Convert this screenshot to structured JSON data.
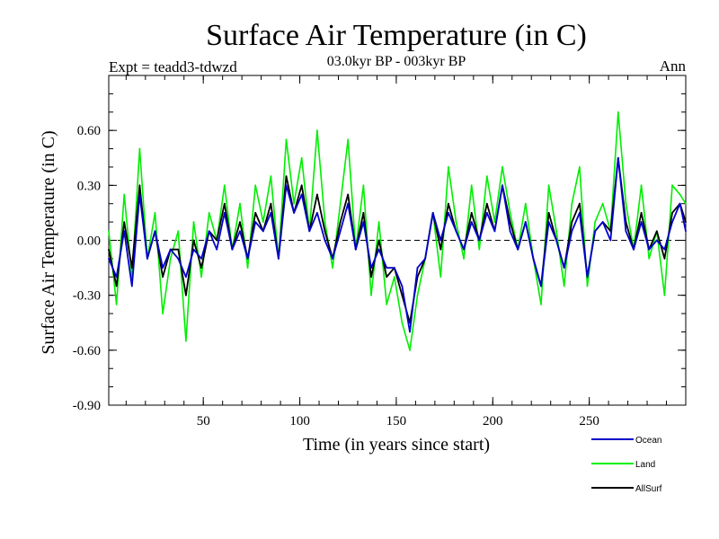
{
  "chart_data": {
    "type": "line",
    "title": "Surface Air Temperature (in C)",
    "subtitle": "03.0kyr BP - 003kyr BP",
    "expt_label": "Expt = teadd3-tdwzd",
    "season_label": "Ann",
    "xlabel": "Time (in years since start)",
    "ylabel": "Surface Air Temperature (in C)",
    "xlim": [
      1,
      300
    ],
    "ylim": [
      -0.9,
      0.9
    ],
    "x_ticks": [
      50,
      100,
      150,
      200,
      250
    ],
    "x_tick_labels": [
      "50",
      "100",
      "150",
      "200",
      "250"
    ],
    "y_ticks": [
      -0.9,
      -0.6,
      -0.3,
      0.0,
      0.3,
      0.6
    ],
    "y_tick_labels": [
      "-0.90",
      "-0.60",
      "-0.30",
      "0.00",
      "0.30",
      "0.60"
    ],
    "reference_line": 0.0,
    "series": [
      {
        "name": "Land",
        "color": "#00ee00",
        "x": [
          1,
          5,
          9,
          13,
          17,
          21,
          25,
          29,
          33,
          37,
          41,
          45,
          49,
          53,
          57,
          61,
          65,
          69,
          73,
          77,
          81,
          85,
          89,
          93,
          97,
          101,
          105,
          109,
          113,
          117,
          121,
          125,
          129,
          133,
          137,
          141,
          145,
          149,
          153,
          157,
          161,
          165,
          169,
          173,
          177,
          181,
          185,
          189,
          193,
          197,
          201,
          205,
          209,
          213,
          217,
          221,
          225,
          229,
          233,
          237,
          241,
          245,
          249,
          253,
          257,
          261,
          265,
          269,
          273,
          277,
          281,
          285,
          289,
          293,
          297,
          300
        ],
        "values": [
          0.05,
          -0.35,
          0.25,
          -0.2,
          0.5,
          -0.1,
          0.15,
          -0.4,
          -0.1,
          0.05,
          -0.55,
          0.1,
          -0.2,
          0.15,
          0.0,
          0.3,
          -0.05,
          0.2,
          -0.15,
          0.3,
          0.1,
          0.35,
          -0.1,
          0.55,
          0.2,
          0.45,
          0.05,
          0.6,
          0.1,
          -0.15,
          0.2,
          0.55,
          -0.05,
          0.3,
          -0.3,
          0.1,
          -0.35,
          -0.2,
          -0.45,
          -0.6,
          -0.3,
          -0.1,
          0.15,
          -0.2,
          0.4,
          0.1,
          -0.1,
          0.3,
          -0.05,
          0.35,
          0.1,
          0.4,
          0.15,
          -0.05,
          0.2,
          -0.1,
          -0.35,
          0.3,
          0.05,
          -0.25,
          0.2,
          0.4,
          -0.25,
          0.1,
          0.2,
          0.05,
          0.7,
          0.2,
          -0.05,
          0.3,
          -0.1,
          0.05,
          -0.3,
          0.3,
          0.25,
          0.2
        ]
      },
      {
        "name": "AllSurf",
        "color": "#000000",
        "x": [
          1,
          5,
          9,
          13,
          17,
          21,
          25,
          29,
          33,
          37,
          41,
          45,
          49,
          53,
          57,
          61,
          65,
          69,
          73,
          77,
          81,
          85,
          89,
          93,
          97,
          101,
          105,
          109,
          113,
          117,
          121,
          125,
          129,
          133,
          137,
          141,
          145,
          149,
          153,
          157,
          161,
          165,
          169,
          173,
          177,
          181,
          185,
          189,
          193,
          197,
          201,
          205,
          209,
          213,
          217,
          221,
          225,
          229,
          233,
          237,
          241,
          245,
          249,
          253,
          257,
          261,
          265,
          269,
          273,
          277,
          281,
          285,
          289,
          293,
          297,
          300
        ],
        "values": [
          -0.05,
          -0.25,
          0.1,
          -0.15,
          0.3,
          -0.1,
          0.05,
          -0.2,
          -0.05,
          -0.05,
          -0.3,
          0.0,
          -0.15,
          0.05,
          0.0,
          0.2,
          -0.05,
          0.1,
          -0.1,
          0.15,
          0.05,
          0.2,
          -0.1,
          0.35,
          0.15,
          0.3,
          0.05,
          0.25,
          0.05,
          -0.1,
          0.1,
          0.25,
          -0.05,
          0.15,
          -0.2,
          0.0,
          -0.2,
          -0.15,
          -0.3,
          -0.45,
          -0.2,
          -0.1,
          0.15,
          -0.05,
          0.2,
          0.05,
          -0.05,
          0.15,
          0.0,
          0.2,
          0.05,
          0.3,
          0.1,
          -0.05,
          0.1,
          -0.1,
          -0.25,
          0.15,
          0.0,
          -0.15,
          0.1,
          0.2,
          -0.2,
          0.05,
          0.1,
          0.05,
          0.45,
          0.1,
          -0.05,
          0.15,
          -0.05,
          0.05,
          -0.1,
          0.15,
          0.2,
          0.1
        ]
      },
      {
        "name": "Ocean",
        "color": "#0000cc",
        "x": [
          1,
          5,
          9,
          13,
          17,
          21,
          25,
          29,
          33,
          37,
          41,
          45,
          49,
          53,
          57,
          61,
          65,
          69,
          73,
          77,
          81,
          85,
          89,
          93,
          97,
          101,
          105,
          109,
          113,
          117,
          121,
          125,
          129,
          133,
          137,
          141,
          145,
          149,
          153,
          157,
          161,
          165,
          169,
          173,
          177,
          181,
          185,
          189,
          193,
          197,
          201,
          205,
          209,
          213,
          217,
          221,
          225,
          229,
          233,
          237,
          241,
          245,
          249,
          253,
          257,
          261,
          265,
          269,
          273,
          277,
          281,
          285,
          289,
          293,
          297,
          300
        ],
        "values": [
          -0.1,
          -0.2,
          0.05,
          -0.25,
          0.25,
          -0.1,
          0.05,
          -0.15,
          -0.05,
          -0.1,
          -0.2,
          -0.05,
          -0.1,
          0.05,
          -0.05,
          0.15,
          -0.05,
          0.05,
          -0.1,
          0.1,
          0.05,
          0.15,
          -0.1,
          0.3,
          0.15,
          0.25,
          0.05,
          0.15,
          0.0,
          -0.1,
          0.05,
          0.2,
          -0.05,
          0.1,
          -0.15,
          -0.05,
          -0.15,
          -0.15,
          -0.25,
          -0.5,
          -0.15,
          -0.1,
          0.15,
          0.0,
          0.15,
          0.05,
          -0.05,
          0.1,
          0.0,
          0.15,
          0.05,
          0.3,
          0.05,
          -0.05,
          0.1,
          -0.1,
          -0.25,
          0.1,
          0.0,
          -0.15,
          0.05,
          0.15,
          -0.2,
          0.05,
          0.1,
          0.0,
          0.45,
          0.05,
          -0.05,
          0.1,
          -0.05,
          0.0,
          -0.05,
          0.1,
          0.2,
          0.05
        ]
      }
    ],
    "legend_entries": [
      "Ocean",
      "Land",
      "AllSurf"
    ],
    "legend_placement": "bottom-right"
  }
}
